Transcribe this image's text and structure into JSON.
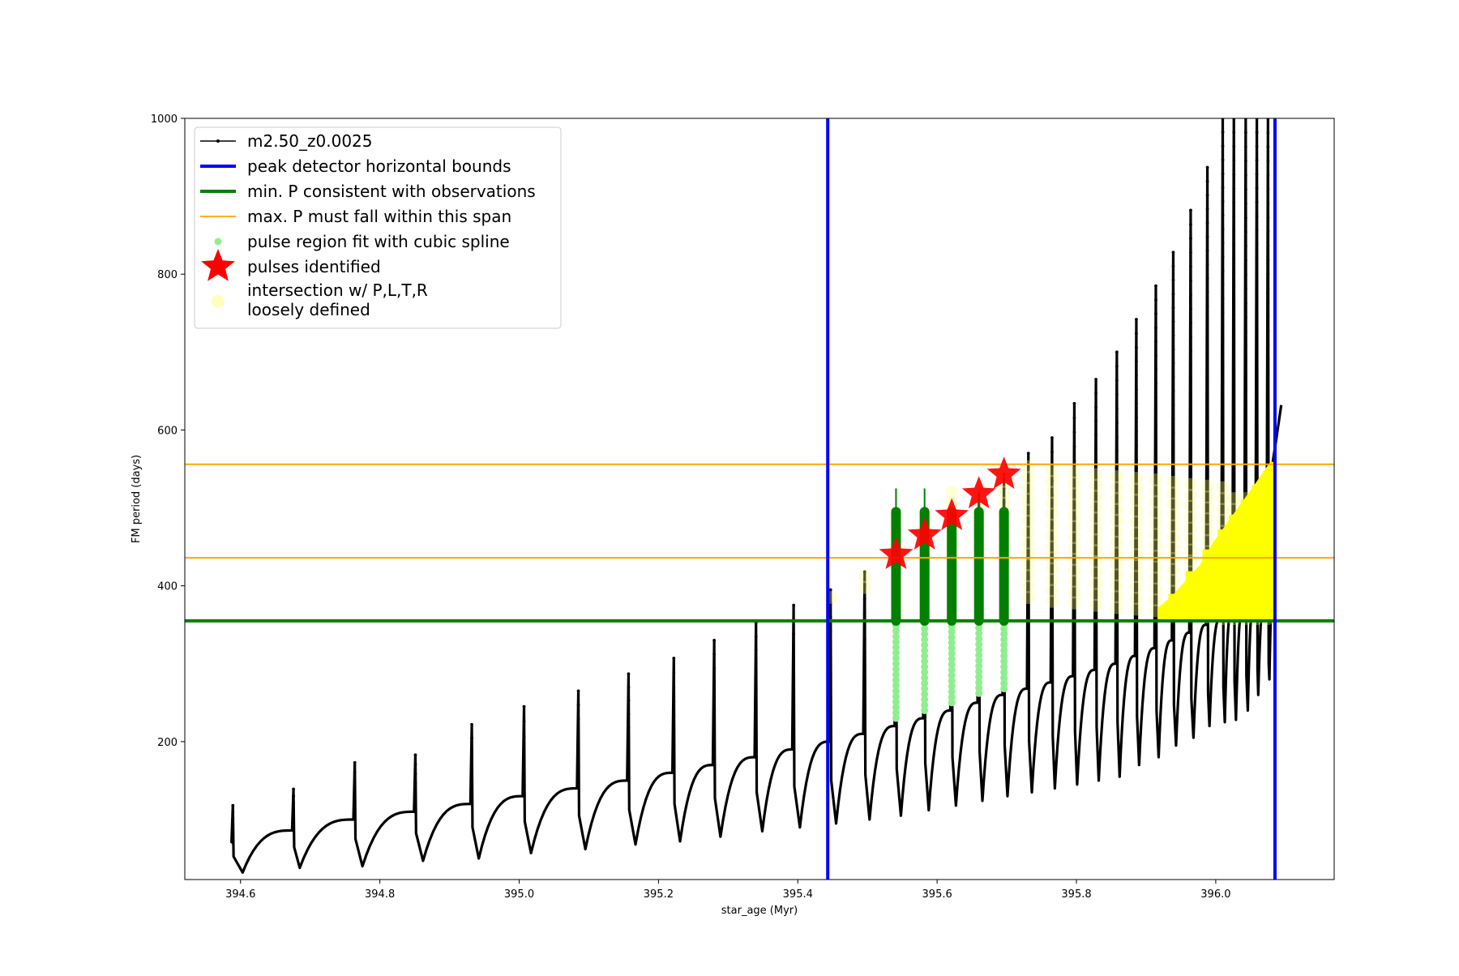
{
  "chart_data": {
    "type": "line",
    "title": "",
    "xlabel": "star_age (Myr)",
    "ylabel": "FM period (days)",
    "xlim": [
      394.52,
      396.17
    ],
    "ylim": [
      23,
      1000
    ],
    "xticks": [
      394.6,
      394.8,
      395.0,
      395.2,
      395.4,
      395.6,
      395.8,
      396.0
    ],
    "xtick_labels": [
      "394.6",
      "394.8",
      "395.0",
      "395.2",
      "395.4",
      "395.6",
      "395.8",
      "396.0"
    ],
    "yticks": [
      200,
      400,
      600,
      800,
      1000
    ],
    "ytick_labels": [
      "200",
      "400",
      "600",
      "800",
      "1000"
    ],
    "grid": false,
    "legend_position": "top-left",
    "colors": {
      "track": "#000000",
      "bounds": "#0000ff",
      "min_p": "#008000",
      "max_p": "#ffa500",
      "spline": "#90ee90",
      "pulse_star": "#ff0000",
      "intersection": "#ffff00"
    },
    "legend": [
      {
        "label": "m2.50_z0.0025",
        "kind": "track"
      },
      {
        "label": "peak detector horizontal bounds",
        "kind": "vline"
      },
      {
        "label": "min. P consistent with observations",
        "kind": "hline-min"
      },
      {
        "label": "max. P must fall within this span",
        "kind": "hline-max"
      },
      {
        "label": "pulse region fit with cubic spline",
        "kind": "spline"
      },
      {
        "label": "pulses identified",
        "kind": "star"
      },
      {
        "label": "intersection w/ P,L,T,R\nloosely defined",
        "kind": "intersection"
      }
    ],
    "vertical_bounds": [
      395.443,
      396.085
    ],
    "min_period": 355,
    "max_period_span": [
      436,
      556
    ],
    "track_pulses": [
      {
        "x": 394.587,
        "peak": 118,
        "baseline_start": 70,
        "min": 32,
        "min_x": 394.603,
        "end": 86
      },
      {
        "x": 394.674,
        "peak": 139,
        "baseline_start": 86,
        "min": 38,
        "min_x": 394.685,
        "end": 100
      },
      {
        "x": 394.762,
        "peak": 173,
        "baseline_start": 100,
        "min": 40,
        "min_x": 394.775,
        "end": 110
      },
      {
        "x": 394.849,
        "peak": 183,
        "baseline_start": 110,
        "min": 47,
        "min_x": 394.862,
        "end": 120
      },
      {
        "x": 394.93,
        "peak": 222,
        "baseline_start": 120,
        "min": 50,
        "min_x": 394.942,
        "end": 130
      },
      {
        "x": 395.005,
        "peak": 245,
        "baseline_start": 130,
        "min": 57,
        "min_x": 395.017,
        "end": 140
      },
      {
        "x": 395.083,
        "peak": 265,
        "baseline_start": 140,
        "min": 62,
        "min_x": 395.095,
        "end": 150
      },
      {
        "x": 395.155,
        "peak": 287,
        "baseline_start": 150,
        "min": 68,
        "min_x": 395.167,
        "end": 160
      },
      {
        "x": 395.22,
        "peak": 307,
        "baseline_start": 160,
        "min": 72,
        "min_x": 395.231,
        "end": 170
      },
      {
        "x": 395.278,
        "peak": 330,
        "baseline_start": 170,
        "min": 78,
        "min_x": 395.289,
        "end": 180
      },
      {
        "x": 395.338,
        "peak": 352,
        "baseline_start": 180,
        "min": 85,
        "min_x": 395.349,
        "end": 190
      },
      {
        "x": 395.392,
        "peak": 375,
        "baseline_start": 190,
        "min": 90,
        "min_x": 395.403,
        "end": 200
      },
      {
        "x": 395.445,
        "peak": 395,
        "baseline_start": 200,
        "min": 95,
        "min_x": 395.455,
        "end": 210
      },
      {
        "x": 395.494,
        "peak": 418,
        "baseline_start": 210,
        "min": 100,
        "min_x": 395.503,
        "end": 220
      },
      {
        "x": 395.539,
        "peak": 440,
        "baseline_start": 220,
        "min": 105,
        "min_x": 395.548,
        "end": 230
      },
      {
        "x": 395.58,
        "peak": 465,
        "baseline_start": 230,
        "min": 112,
        "min_x": 395.588,
        "end": 240
      },
      {
        "x": 395.619,
        "peak": 490,
        "baseline_start": 240,
        "min": 118,
        "min_x": 395.627,
        "end": 250
      },
      {
        "x": 395.658,
        "peak": 518,
        "baseline_start": 250,
        "min": 124,
        "min_x": 395.665,
        "end": 260
      },
      {
        "x": 395.694,
        "peak": 543,
        "baseline_start": 260,
        "min": 130,
        "min_x": 395.701,
        "end": 268
      },
      {
        "x": 395.729,
        "peak": 570,
        "baseline_start": 268,
        "min": 135,
        "min_x": 395.736,
        "end": 276
      },
      {
        "x": 395.763,
        "peak": 590,
        "baseline_start": 276,
        "min": 140,
        "min_x": 395.769,
        "end": 284
      },
      {
        "x": 395.795,
        "peak": 634,
        "baseline_start": 284,
        "min": 145,
        "min_x": 395.801,
        "end": 292
      },
      {
        "x": 395.826,
        "peak": 665,
        "baseline_start": 292,
        "min": 150,
        "min_x": 395.832,
        "end": 300
      },
      {
        "x": 395.856,
        "peak": 700,
        "baseline_start": 300,
        "min": 155,
        "min_x": 395.862,
        "end": 310
      },
      {
        "x": 395.884,
        "peak": 742,
        "baseline_start": 310,
        "min": 170,
        "min_x": 395.89,
        "end": 320
      },
      {
        "x": 395.912,
        "peak": 785,
        "baseline_start": 320,
        "min": 180,
        "min_x": 395.918,
        "end": 330
      },
      {
        "x": 395.937,
        "peak": 828,
        "baseline_start": 330,
        "min": 195,
        "min_x": 395.943,
        "end": 340
      },
      {
        "x": 395.962,
        "peak": 882,
        "baseline_start": 340,
        "min": 205,
        "min_x": 395.968,
        "end": 350
      },
      {
        "x": 395.986,
        "peak": 937,
        "baseline_start": 350,
        "min": 220,
        "min_x": 395.991,
        "end": 360
      },
      {
        "x": 396.008,
        "peak": 1000,
        "baseline_start": 360,
        "min": 225,
        "min_x": 396.013,
        "end": 370
      },
      {
        "x": 396.024,
        "peak": 1000,
        "baseline_start": 370,
        "min": 228,
        "min_x": 396.029,
        "end": 380
      },
      {
        "x": 396.041,
        "peak": 1000,
        "baseline_start": 380,
        "min": 240,
        "min_x": 396.046,
        "end": 390
      },
      {
        "x": 396.057,
        "peak": 1000,
        "baseline_start": 390,
        "min": 260,
        "min_x": 396.061,
        "end": 400
      },
      {
        "x": 396.073,
        "peak": 1000,
        "baseline_start": 400,
        "min": 280,
        "min_x": 396.077,
        "end": 420
      }
    ],
    "track_tail": [
      [
        396.082,
        560
      ],
      [
        396.088,
        595
      ],
      [
        396.094,
        632
      ]
    ],
    "pulses_identified": [
      {
        "x": 395.539,
        "y": 440
      },
      {
        "x": 395.58,
        "y": 465
      },
      {
        "x": 395.619,
        "y": 490
      },
      {
        "x": 395.658,
        "y": 518
      },
      {
        "x": 395.694,
        "y": 543
      }
    ],
    "spline_regions": [
      {
        "x": 395.539,
        "low": 230,
        "high": 525,
        "thick_low": 355,
        "thick_high": 495
      },
      {
        "x": 395.58,
        "low": 240,
        "high": 525,
        "thick_low": 355,
        "thick_high": 495
      },
      {
        "x": 395.619,
        "low": 250,
        "high": 500,
        "thick_low": 355,
        "thick_high": 495
      },
      {
        "x": 395.658,
        "low": 262,
        "high": 500,
        "thick_low": 355,
        "thick_high": 495
      },
      {
        "x": 395.694,
        "low": 268,
        "high": 500,
        "thick_low": 355,
        "thick_high": 495
      }
    ],
    "intersection_points_loose": [
      {
        "x": 395.445,
        "low": 385,
        "high": 398
      },
      {
        "x": 395.494,
        "low": 398,
        "high": 420
      },
      {
        "x": 395.539,
        "low": 436,
        "high": 500
      },
      {
        "x": 395.58,
        "low": 436,
        "high": 500
      },
      {
        "x": 395.619,
        "low": 436,
        "high": 520
      },
      {
        "x": 395.658,
        "low": 436,
        "high": 530
      },
      {
        "x": 395.694,
        "low": 436,
        "high": 550
      },
      {
        "x": 395.729,
        "low": 385,
        "high": 556
      },
      {
        "x": 395.763,
        "low": 380,
        "high": 556
      },
      {
        "x": 395.795,
        "low": 378,
        "high": 550
      },
      {
        "x": 395.826,
        "low": 375,
        "high": 545
      },
      {
        "x": 395.856,
        "low": 372,
        "high": 545
      },
      {
        "x": 395.884,
        "low": 370,
        "high": 540
      },
      {
        "x": 395.912,
        "low": 368,
        "high": 540
      },
      {
        "x": 395.937,
        "low": 365,
        "high": 540
      },
      {
        "x": 395.962,
        "low": 362,
        "high": 540
      },
      {
        "x": 395.986,
        "low": 360,
        "high": 535
      },
      {
        "x": 396.008,
        "low": 358,
        "high": 530
      },
      {
        "x": 396.024,
        "low": 358,
        "high": 525
      },
      {
        "x": 396.041,
        "low": 358,
        "high": 520
      },
      {
        "x": 396.057,
        "low": 358,
        "high": 520
      },
      {
        "x": 396.073,
        "low": 358,
        "high": 520
      }
    ],
    "intersection_band": [
      [
        395.92,
        370
      ],
      [
        395.94,
        385
      ],
      [
        395.96,
        405
      ],
      [
        395.98,
        425
      ],
      [
        396.0,
        455
      ],
      [
        396.02,
        480
      ],
      [
        396.04,
        505
      ],
      [
        396.06,
        530
      ],
      [
        396.08,
        556
      ]
    ]
  }
}
